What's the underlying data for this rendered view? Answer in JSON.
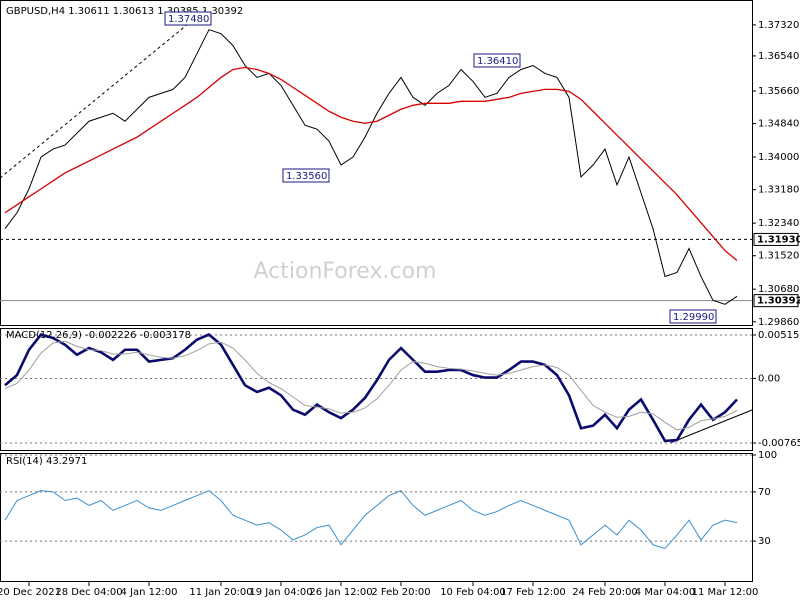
{
  "chart_data": [
    {
      "type": "line",
      "title": "GBPUSD,H4  1.30611 1.30613 1.30385 1.30392",
      "watermark": "ActionForex.com",
      "categories": [
        null,
        null,
        "20 Dec 2021",
        null,
        null,
        null,
        null,
        "28 Dec 04:00",
        null,
        null,
        null,
        null,
        "4 Jan 12:00",
        null,
        null,
        null,
        null,
        null,
        "11 Jan 20:00",
        null,
        null,
        null,
        null,
        "19 Jan 04:00",
        null,
        null,
        null,
        null,
        "26 Jan 12:00",
        null,
        null,
        null,
        null,
        "2 Feb 20:00",
        null,
        null,
        null,
        null,
        null,
        "10 Feb 04:00",
        null,
        null,
        null,
        null,
        "17 Feb 12:00",
        null,
        null,
        null,
        null,
        null,
        "24 Feb 20:00",
        null,
        null,
        null,
        null,
        "4 Mar 04:00",
        null,
        null,
        null,
        null,
        "11 Mar 12:00",
        null
      ],
      "series": [
        {
          "color": "#000000",
          "values": [
            1.322,
            1.326,
            1.332,
            1.34,
            1.342,
            1.343,
            1.346,
            1.349,
            1.35,
            1.351,
            1.349,
            1.352,
            1.355,
            1.356,
            1.357,
            1.36,
            1.366,
            1.372,
            1.371,
            1.368,
            1.363,
            1.36,
            1.361,
            1.358,
            1.353,
            1.348,
            1.347,
            1.344,
            1.338,
            1.34,
            1.345,
            1.351,
            1.356,
            1.36,
            1.355,
            1.353,
            1.356,
            1.358,
            1.362,
            1.359,
            1.355,
            1.356,
            1.36,
            1.362,
            1.363,
            1.361,
            1.36,
            1.355,
            1.335,
            1.338,
            1.342,
            1.333,
            1.34,
            1.331,
            1.322,
            1.31,
            1.311,
            1.317,
            1.31,
            1.304,
            1.303,
            1.305
          ]
        },
        {
          "color": "#d40000",
          "values": [
            1.326,
            1.328,
            1.33,
            1.332,
            1.334,
            1.336,
            1.3375,
            1.339,
            1.3405,
            1.342,
            1.3435,
            1.345,
            1.347,
            1.349,
            1.351,
            1.353,
            1.355,
            1.3575,
            1.36,
            1.362,
            1.3625,
            1.362,
            1.361,
            1.3595,
            1.3575,
            1.3555,
            1.3535,
            1.3515,
            1.35,
            1.349,
            1.3485,
            1.349,
            1.3505,
            1.352,
            1.353,
            1.3535,
            1.3535,
            1.3535,
            1.354,
            1.354,
            1.354,
            1.3545,
            1.355,
            1.356,
            1.3565,
            1.357,
            1.357,
            1.3565,
            1.3545,
            1.3515,
            1.3485,
            1.3455,
            1.3425,
            1.3395,
            1.3365,
            1.3335,
            1.3305,
            1.327,
            1.3235,
            1.32,
            1.3165,
            1.314
          ]
        }
      ],
      "annotations": [
        "1.37480",
        "1.33560",
        "1.36410",
        "1.29990"
      ],
      "levels": [
        {
          "value": 1.3193,
          "label": "1.31930"
        },
        {
          "value": 1.30392,
          "label": "1.30392"
        }
      ],
      "ylim": [
        1.2978,
        1.3782
      ],
      "yticks": [
        {
          "value": 1.3732,
          "label": "1.37320"
        },
        {
          "value": 1.3654,
          "label": "1.36540"
        },
        {
          "value": 1.3566,
          "label": "1.35660"
        },
        {
          "value": 1.3484,
          "label": "1.34840"
        },
        {
          "value": 1.34,
          "label": "1.34000"
        },
        {
          "value": 1.3318,
          "label": "1.33180"
        },
        {
          "value": 1.3234,
          "label": "1.32340"
        },
        {
          "value": 1.3152,
          "label": "1.31520"
        },
        {
          "value": 1.3068,
          "label": "1.30680"
        },
        {
          "value": 1.2986,
          "label": "1.29860"
        }
      ],
      "grid": false
    },
    {
      "type": "line",
      "title": "MACD(12,26,9) -0.002226 -0.003178",
      "series": [
        {
          "color": "#0b0b6e",
          "values": [
            -0.0008,
            0.0004,
            0.0034,
            0.0052,
            0.0048,
            0.004,
            0.0028,
            0.0036,
            0.0031,
            0.0022,
            0.0034,
            0.0034,
            0.002,
            0.0022,
            0.0024,
            0.0034,
            0.0046,
            0.0052,
            0.004,
            0.0016,
            -0.0008,
            -0.0016,
            -0.0011,
            -0.002,
            -0.0037,
            -0.0043,
            -0.0031,
            -0.004,
            -0.0047,
            -0.0037,
            -0.0023,
            -0.0002,
            0.0022,
            0.0036,
            0.0022,
            0.0008,
            0.0008,
            0.001,
            0.001,
            0.0004,
            0.0001,
            0.0001,
            0.001,
            0.002,
            0.002,
            0.0016,
            0.0004,
            -0.002,
            -0.0059,
            -0.0056,
            -0.0043,
            -0.0059,
            -0.0037,
            -0.0025,
            -0.0049,
            -0.0074,
            -0.0073,
            -0.0049,
            -0.0031,
            -0.0049,
            -0.004,
            -0.0025
          ]
        },
        {
          "color": "#a0a0a0",
          "values": [
            -0.0012,
            -0.0006,
            0.001,
            0.003,
            0.0042,
            0.0044,
            0.0038,
            0.0034,
            0.0033,
            0.0029,
            0.0029,
            0.0031,
            0.0028,
            0.0025,
            0.0024,
            0.0027,
            0.0033,
            0.0041,
            0.0043,
            0.0036,
            0.0022,
            0.0006,
            -0.0005,
            -0.0012,
            -0.0022,
            -0.0032,
            -0.0034,
            -0.0036,
            -0.0041,
            -0.004,
            -0.0035,
            -0.0024,
            -0.0008,
            0.001,
            0.002,
            0.0018,
            0.0014,
            0.0012,
            0.0011,
            0.0009,
            0.0006,
            0.0004,
            0.0006,
            0.001,
            0.0014,
            0.0016,
            0.0013,
            0.0004,
            -0.0014,
            -0.0032,
            -0.004,
            -0.0046,
            -0.0045,
            -0.004,
            -0.0042,
            -0.0052,
            -0.0061,
            -0.0058,
            -0.005,
            -0.0048,
            -0.0045,
            -0.0038
          ]
        }
      ],
      "ylim": [
        -0.00848,
        0.00586
      ],
      "yticks": [
        0.005152,
        {
          "value": 0,
          "label": "0.00"
        },
        -0.00765
      ],
      "grid": true
    },
    {
      "type": "line",
      "title": "RSI(14) 43.2971",
      "series": [
        {
          "color": "#3a8fd0",
          "values": [
            47,
            63,
            67,
            71,
            70,
            63,
            65,
            59,
            63,
            55,
            59,
            63,
            57,
            55,
            59,
            63,
            67,
            71,
            63,
            51,
            47,
            43,
            45,
            39,
            31,
            35,
            41,
            43,
            27,
            39,
            51,
            59,
            67,
            71,
            59,
            51,
            55,
            59,
            63,
            55,
            51,
            54,
            59,
            63,
            59,
            55,
            51,
            47,
            27,
            35,
            43,
            35,
            47,
            39,
            27,
            24,
            35,
            47,
            31,
            43,
            47,
            45
          ]
        }
      ],
      "ylim": [
        0,
        100
      ],
      "yticks": [
        100,
        70,
        30
      ],
      "grid": true
    }
  ]
}
